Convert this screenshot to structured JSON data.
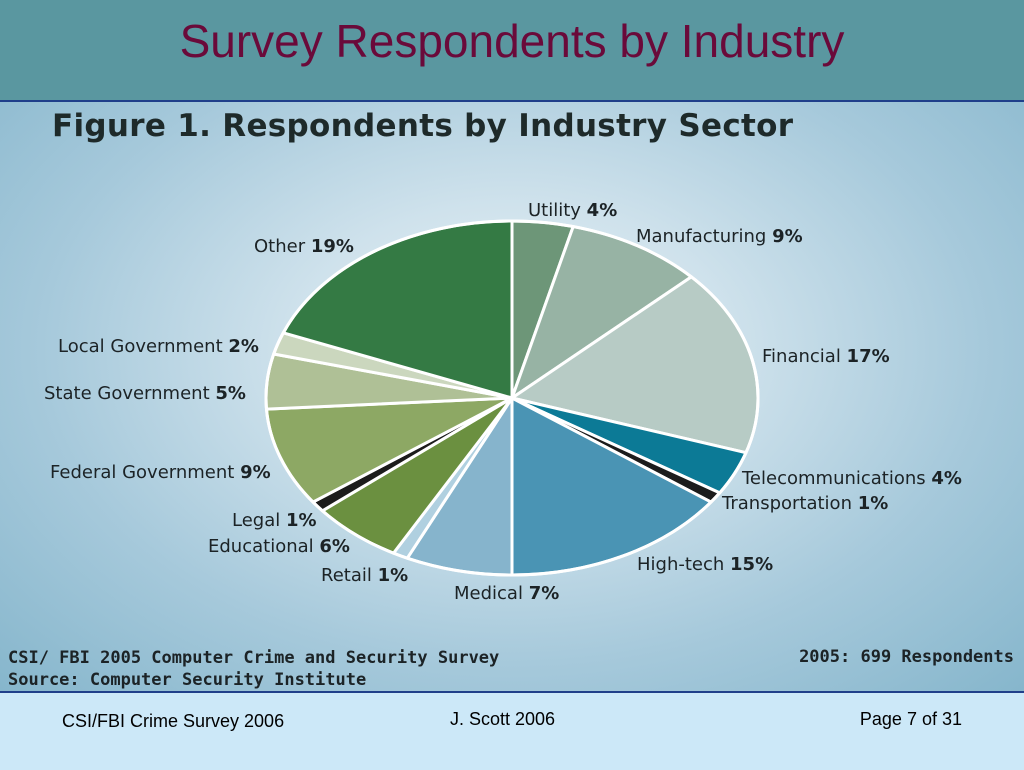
{
  "slide": {
    "title": "Survey Respondents by Industry"
  },
  "figure": {
    "source_line1": "CSI/ FBI 2005 Computer Crime and Security Survey",
    "source_line2": "Source: Computer Security Institute",
    "respondents": "2005: 699 Respondents"
  },
  "footer": {
    "left": "CSI/FBI Crime Survey 2006",
    "middle": "J. Scott  2006",
    "right": "Page 7 of 31"
  },
  "chart_data": {
    "type": "pie",
    "title": "Figure 1. Respondents by Industry Sector",
    "start": "12 o'clock, clockwise",
    "categories": [
      "Utility",
      "Manufacturing",
      "Financial",
      "Telecommunications",
      "Transportation",
      "High-tech",
      "Medical",
      "Retail",
      "Educational",
      "Legal",
      "Federal Government",
      "State Government",
      "Local Government",
      "Other"
    ],
    "values": [
      4,
      9,
      17,
      4,
      1,
      15,
      7,
      1,
      6,
      1,
      9,
      5,
      2,
      19
    ],
    "labels": [
      "Utility",
      "Manufacturing",
      "Financial",
      "Telecommunications",
      "Transportation",
      "High-tech",
      "Medical",
      "Retail",
      "Educational",
      "Legal",
      "Federal Government",
      "State Government",
      "Local Government",
      "Other"
    ],
    "value_labels": [
      "4%",
      "9%",
      "17%",
      "4%",
      "1%",
      "15%",
      "7%",
      "1%",
      "6%",
      "1%",
      "9%",
      "5%",
      "2%",
      "19%"
    ],
    "colors": [
      "#6d9678",
      "#97b3a4",
      "#b7cbc5",
      "#0c7a96",
      "#1c1c1c",
      "#4a94b4",
      "#86b4cc",
      "#b0d0e0",
      "#6b9040",
      "#1c1c1c",
      "#8da864",
      "#afc096",
      "#cbd7be",
      "#347a44"
    ],
    "legend": "none (direct labels)"
  }
}
